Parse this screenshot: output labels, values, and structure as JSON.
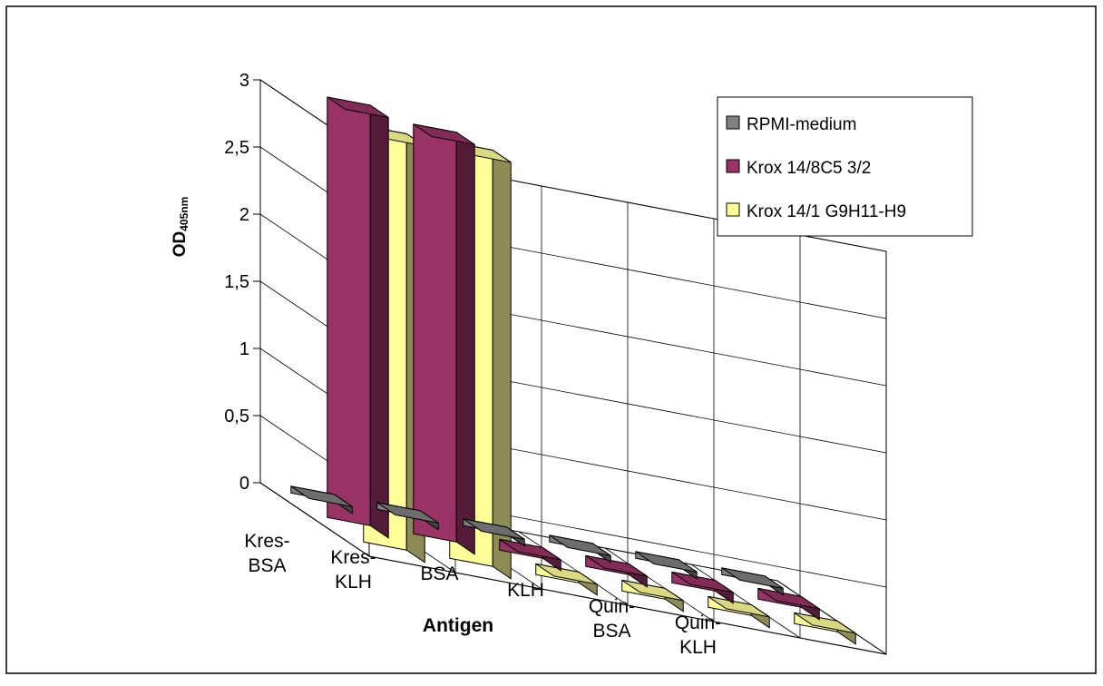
{
  "chart_data": {
    "type": "bar",
    "style": "3d-clustered-depth",
    "categories": [
      [
        "Kres-",
        "BSA"
      ],
      [
        "Kres-",
        "KLH"
      ],
      [
        "BSA"
      ],
      [
        "KLH"
      ],
      [
        "Quin-",
        "BSA"
      ],
      [
        "Quin-",
        "KLH"
      ]
    ],
    "series": [
      {
        "name": "RPMI-medium",
        "values": [
          0.05,
          0.05,
          0.05,
          0.05,
          0.05,
          0.05
        ],
        "color": "#808080"
      },
      {
        "name": "Krox 14/8C5 3/2",
        "values": [
          0,
          0,
          0.08,
          0.08,
          0.08,
          0.08
        ],
        "color": "#993366"
      },
      {
        "name": "Krox 14/1 G9H11-H9",
        "values": [
          0,
          0,
          0.08,
          0.08,
          0.08,
          0.08
        ],
        "color": "#FFFF99"
      }
    ],
    "tall_bars": [
      {
        "series": 1,
        "category": 0,
        "value": 3.13
      },
      {
        "series": 2,
        "category": 0,
        "value": 3.1
      },
      {
        "series": 1,
        "category": 1,
        "value": 3.05
      },
      {
        "series": 2,
        "category": 1,
        "value": 3.1
      }
    ],
    "xlabel": "Antigen",
    "ylabel": {
      "main": "OD",
      "sub": "405nm"
    },
    "ylim": [
      0,
      3
    ],
    "yticks": [
      "0",
      "0,5",
      "1",
      "1,5",
      "2",
      "2,5",
      "3"
    ],
    "grid": true,
    "legend_position": "right"
  }
}
